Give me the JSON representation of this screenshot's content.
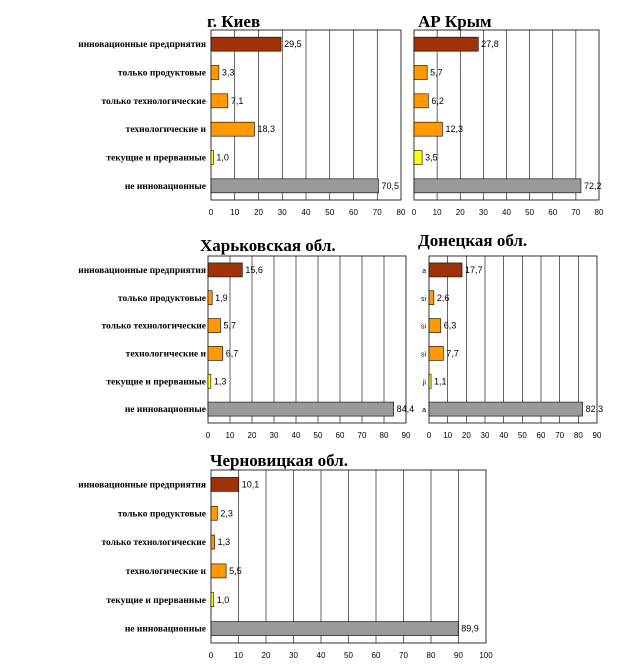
{
  "colors": {
    "innovative": "#a0320a",
    "product_only": "#ff9900",
    "tech_only": "#ff9900",
    "tech_and": "#ff9900",
    "current": "#ffff00",
    "non_innovative": "#999999",
    "grid": "#000000"
  },
  "chart_data": [
    {
      "type": "bar",
      "orientation": "horizontal",
      "title": "г. Киев",
      "categories": [
        "инновационные предприятия",
        "только продуктовые",
        "только технологические",
        "технологические и",
        "текущие и прерванные",
        "не инновационные"
      ],
      "values": [
        29.5,
        3.3,
        7.1,
        18.3,
        1.0,
        70.5
      ],
      "value_labels": [
        "29,5",
        "3,3",
        "7,1",
        "18,3",
        "1,0",
        "70,5"
      ],
      "xlim": [
        0,
        80
      ],
      "xticks": [
        "0",
        "10",
        "20",
        "30",
        "40",
        "50",
        "60",
        "70",
        "80"
      ],
      "show_categories": true,
      "y_tick_labels": [
        "",
        "",
        "",
        "",
        "",
        ""
      ],
      "grid": true
    },
    {
      "type": "bar",
      "orientation": "horizontal",
      "title": "АР Крым",
      "categories": [
        "инновационные предприятия",
        "только продуктовые",
        "только технологические",
        "технологические и",
        "текущие и прерванные",
        "не инновационные"
      ],
      "values": [
        27.8,
        5.7,
        6.2,
        12.3,
        3.5,
        72.2
      ],
      "value_labels": [
        "27,8",
        "5,7",
        "6,2",
        "12,3",
        "3,5",
        "72,2"
      ],
      "xlim": [
        0,
        80
      ],
      "xticks": [
        "0",
        "10",
        "20",
        "30",
        "40",
        "50",
        "60",
        "70",
        "80"
      ],
      "show_categories": false,
      "y_tick_labels": [
        "",
        "",
        "",
        "",
        "",
        ""
      ],
      "grid": true
    },
    {
      "type": "bar",
      "orientation": "horizontal",
      "title": "Харьковская обл.",
      "categories": [
        "инновационные предприятия",
        "только продуктовые",
        "только технологические",
        "технологические и",
        "текущие и прерванные",
        "не инновационные"
      ],
      "values": [
        15.6,
        1.9,
        5.7,
        6.7,
        1.3,
        84.4
      ],
      "value_labels": [
        "15,6",
        "1,9",
        "5,7",
        "6,7",
        "1,3",
        "84,4"
      ],
      "xlim": [
        0,
        90
      ],
      "xticks": [
        "0",
        "10",
        "20",
        "30",
        "40",
        "50",
        "60",
        "70",
        "80",
        "90"
      ],
      "show_categories": true,
      "y_tick_labels": [
        "",
        "",
        "",
        "",
        "",
        ""
      ],
      "grid": true
    },
    {
      "type": "bar",
      "orientation": "horizontal",
      "title": "Донецкая обл.",
      "categories": [
        "инновационные предприятия",
        "только продуктовые",
        "только технологические",
        "технологические и",
        "текущие и прерванные",
        "не инновационные"
      ],
      "values": [
        17.7,
        2.6,
        6.3,
        7.7,
        1.1,
        82.3
      ],
      "value_labels": [
        "17,7",
        "2,6",
        "6,3",
        "7,7",
        "1,1",
        "82,3"
      ],
      "xlim": [
        0,
        90
      ],
      "xticks": [
        "0",
        "10",
        "20",
        "30",
        "40",
        "50",
        "60",
        "70",
        "80",
        "90"
      ],
      "show_categories": false,
      "y_tick_labels": [
        "а",
        "si",
        "si",
        "si",
        "ji",
        "а"
      ],
      "grid": true
    },
    {
      "type": "bar",
      "orientation": "horizontal",
      "title": "Черновицкая обл.",
      "categories": [
        "инновационные предприятия",
        "только продуктовые",
        "только технологические",
        "технологические и",
        "текущие и прерванные",
        "не инновационные"
      ],
      "values": [
        10.1,
        2.3,
        1.3,
        5.5,
        1.0,
        89.9
      ],
      "value_labels": [
        "10,1",
        "2,3",
        "1,3",
        "5,5",
        "1,0",
        "89,9"
      ],
      "xlim": [
        0,
        100
      ],
      "xticks": [
        "0",
        "10",
        "20",
        "30",
        "40",
        "50",
        "60",
        "70",
        "80",
        "90",
        "100"
      ],
      "show_categories": true,
      "y_tick_labels": [
        "",
        "",
        "",
        "",
        "",
        ""
      ],
      "grid": true
    }
  ]
}
